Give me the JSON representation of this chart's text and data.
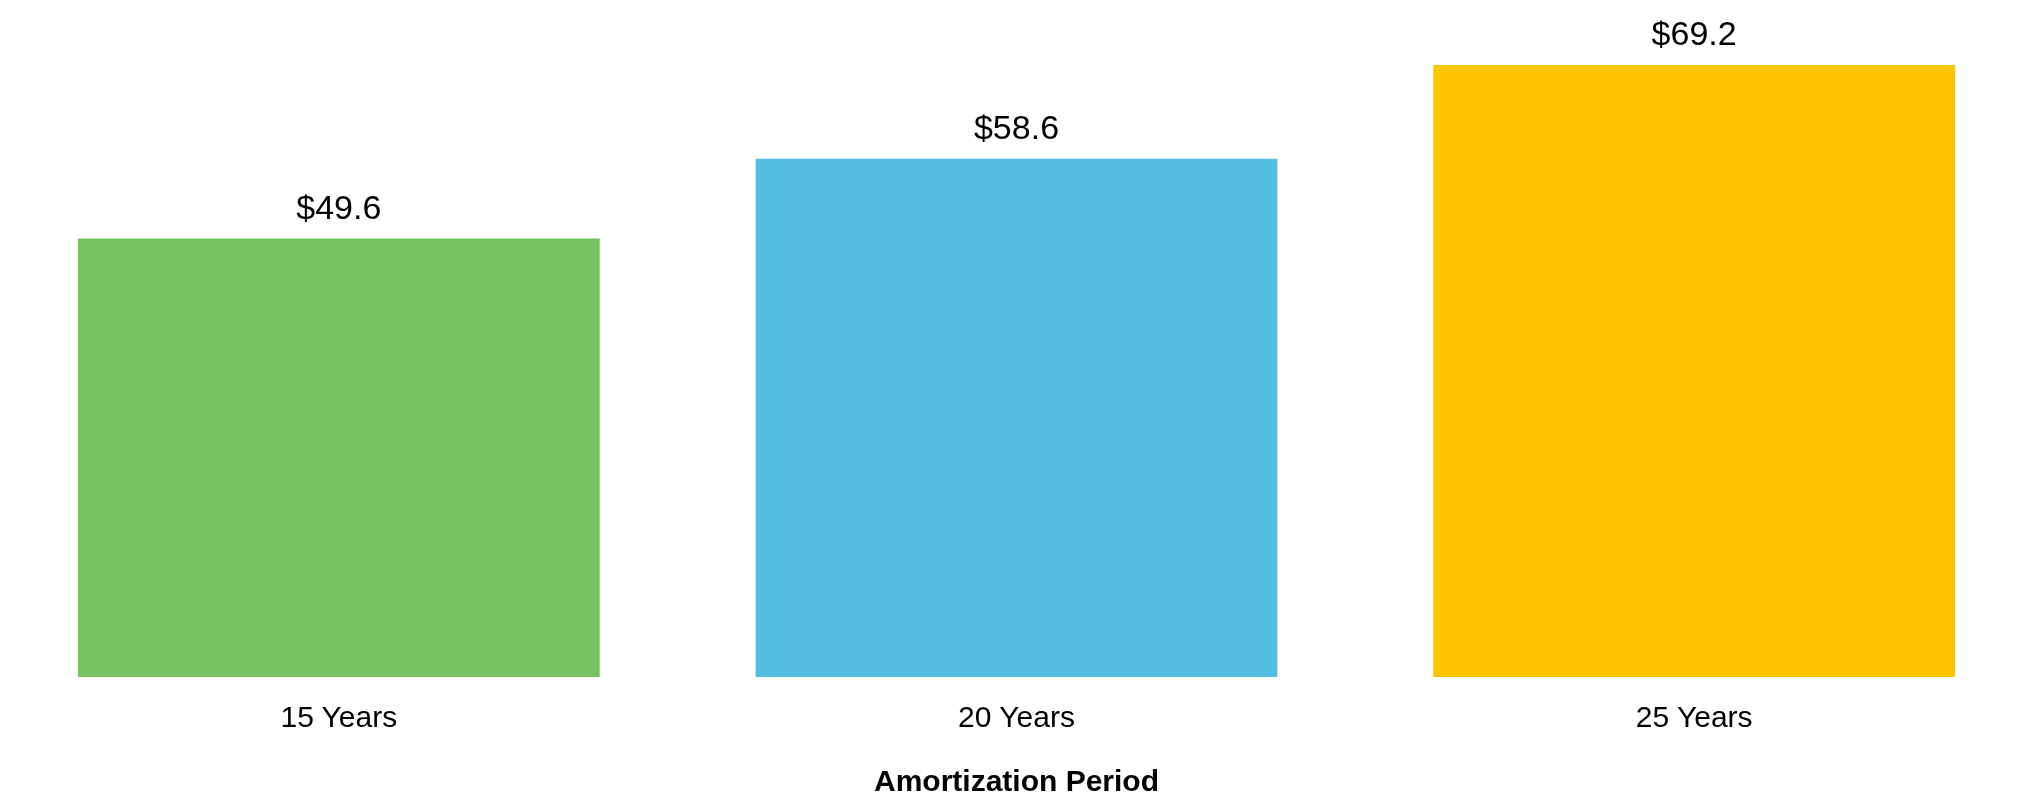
{
  "chart_data": {
    "type": "bar",
    "xlabel": "Amortization Period",
    "categories": [
      "15 Years",
      "20 Years",
      "25 Years"
    ],
    "values": [
      49.6,
      58.6,
      69.2
    ],
    "colors": [
      "#77c063",
      "#52bde0",
      "#fdc500"
    ],
    "value_labels": [
      "$49.6",
      "$58.6",
      "$69.2"
    ],
    "tick_labels": "x",
    "grid": false,
    "legend": false
  }
}
